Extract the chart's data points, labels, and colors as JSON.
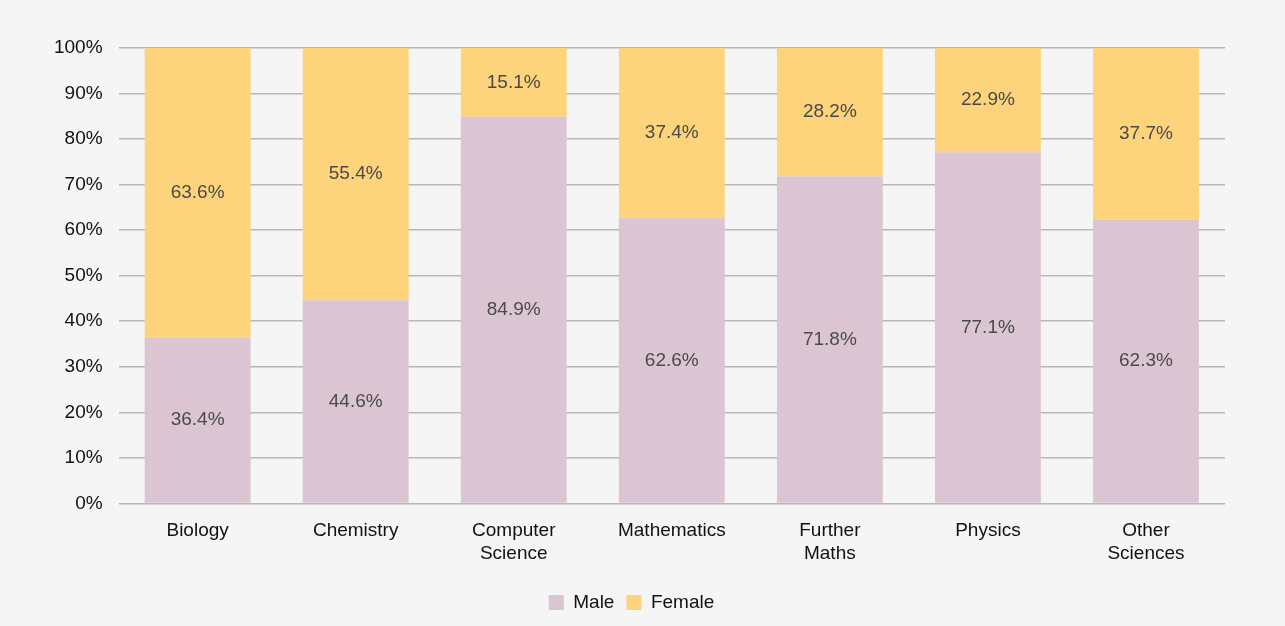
{
  "chart_data": {
    "type": "bar",
    "stacked": true,
    "categories": [
      "Biology",
      "Chemistry",
      "Computer Science",
      "Mathematics",
      "Further Maths",
      "Physics",
      "Other Sciences"
    ],
    "series": [
      {
        "name": "Male",
        "color": "#dbc5d2",
        "values": [
          36.4,
          44.6,
          84.9,
          62.6,
          71.8,
          77.1,
          62.3
        ],
        "value_labels": [
          "36.4%",
          "44.6%",
          "84.9%",
          "62.6%",
          "71.8%",
          "77.1%",
          "62.3%"
        ]
      },
      {
        "name": "Female",
        "color": "#fdd47c",
        "values": [
          63.6,
          55.4,
          15.1,
          37.4,
          28.2,
          22.9,
          37.7
        ],
        "value_labels": [
          "63.6%",
          "55.4%",
          "15.1%",
          "37.4%",
          "28.2%",
          "22.9%",
          "37.7%"
        ]
      }
    ],
    "ylim": [
      0,
      100
    ],
    "yticks": [
      {
        "value": 0,
        "label": "0%"
      },
      {
        "value": 10,
        "label": "10%"
      },
      {
        "value": 20,
        "label": "20%"
      },
      {
        "value": 30,
        "label": "30%"
      },
      {
        "value": 40,
        "label": "40%"
      },
      {
        "value": 50,
        "label": "50%"
      },
      {
        "value": 60,
        "label": "60%"
      },
      {
        "value": 70,
        "label": "70%"
      },
      {
        "value": 80,
        "label": "80%"
      },
      {
        "value": 90,
        "label": "90%"
      },
      {
        "value": 100,
        "label": "100%"
      }
    ],
    "grid": "y",
    "legend": "bottom"
  }
}
